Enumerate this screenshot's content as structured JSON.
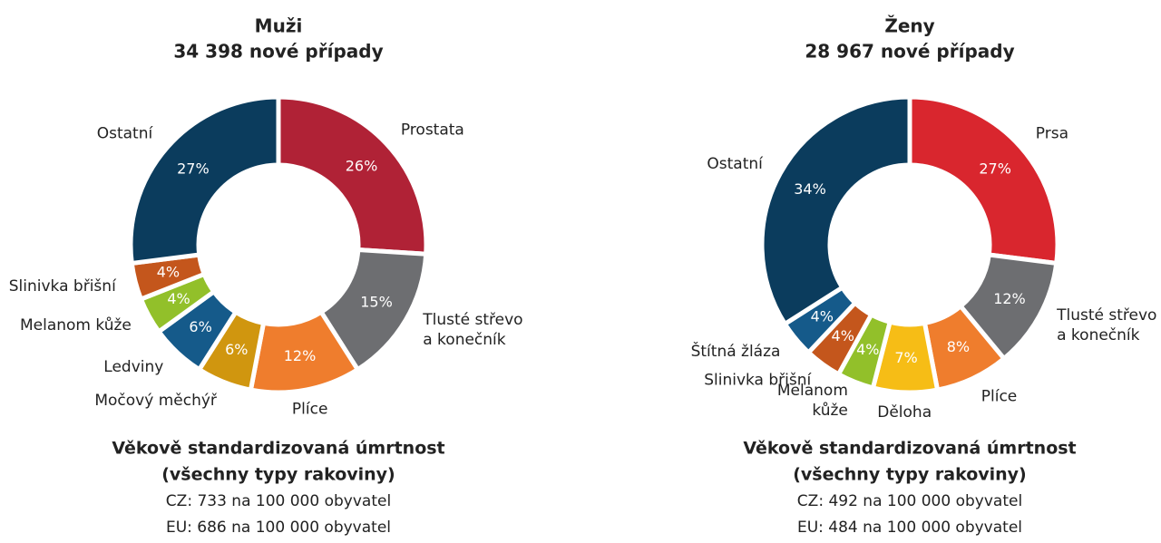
{
  "chart_data": [
    {
      "type": "pie",
      "title": "Muži",
      "subtitle": "34 398 nové případy",
      "categories": [
        "Prostata",
        "Tlusté střevo\na konečník",
        "Plíce",
        "Močový měchýř",
        "Ledviny",
        "Melanom kůže",
        "Slinivka břišní",
        "Ostatní"
      ],
      "values": [
        26,
        15,
        12,
        6,
        6,
        4,
        4,
        27
      ],
      "value_labels": [
        "26%",
        "15%",
        "12%",
        "6%",
        "6%",
        "4%",
        "4%",
        "27%"
      ],
      "colors": [
        "#b02236",
        "#6d6e71",
        "#ef7d2d",
        "#d0960f",
        "#155a8a",
        "#92c02a",
        "#c4561c",
        "#0b3c5d"
      ],
      "notes": [
        "Věkově standardizovaná úmrtnost",
        "(všechny typy rakoviny)",
        "CZ: 733 na 100 000 obyvatel",
        "EU: 686 na 100 000 obyvatel"
      ]
    },
    {
      "type": "pie",
      "title": "Ženy",
      "subtitle": "28 967 nové případy",
      "categories": [
        "Prsa",
        "Tlusté střevo\na konečník",
        "Plíce",
        "Děloha",
        "Melanom\nkůže",
        "Slinivka břišní",
        "Štítná žláza",
        "Ostatní"
      ],
      "values": [
        27,
        12,
        8,
        7,
        4,
        4,
        4,
        34
      ],
      "value_labels": [
        "27%",
        "12%",
        "8%",
        "7%",
        "4%",
        "4%",
        "4%",
        "34%"
      ],
      "colors": [
        "#d9262e",
        "#6d6e71",
        "#ef7d2d",
        "#f6bd16",
        "#92c02a",
        "#c4561c",
        "#155a8a",
        "#0b3c5d"
      ],
      "notes": [
        "Věkově standardizovaná úmrtnost",
        "(všechny typy rakoviny)",
        "CZ: 492 na 100 000 obyvatel",
        "EU: 484 na 100 000 obyvatel"
      ]
    }
  ]
}
